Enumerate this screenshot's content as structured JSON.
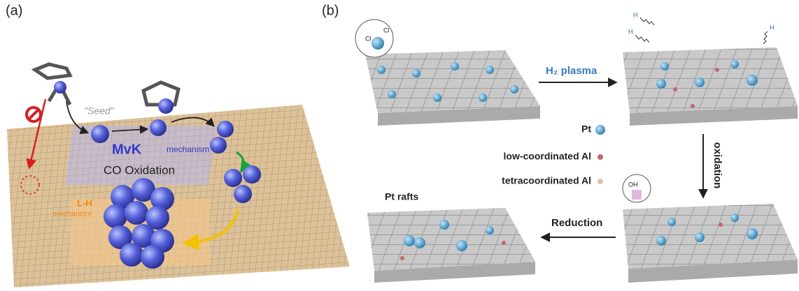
{
  "panel_a": {
    "label": "(a)",
    "seed": "\"Seed\"",
    "mvk": "MvK",
    "mvk_mechanism": "mechanism",
    "co_oxidation": "CO Oxidation",
    "lh": "L-H",
    "lh_mechanism": "mechanism"
  },
  "panel_b": {
    "label": "(b)",
    "cl_1": "Cl",
    "cl_2": "Cl",
    "h_1": "H",
    "h_2": "H",
    "h_3": "H",
    "oh": "OH",
    "h2_plasma": "H₂ plasma",
    "oxidation": "oxidation",
    "reduction": "Reduction",
    "pt_rafts": "Pt rafts",
    "legend": [
      "Pt",
      "low-coordinated Al",
      "tetracoordinated Al"
    ]
  }
}
